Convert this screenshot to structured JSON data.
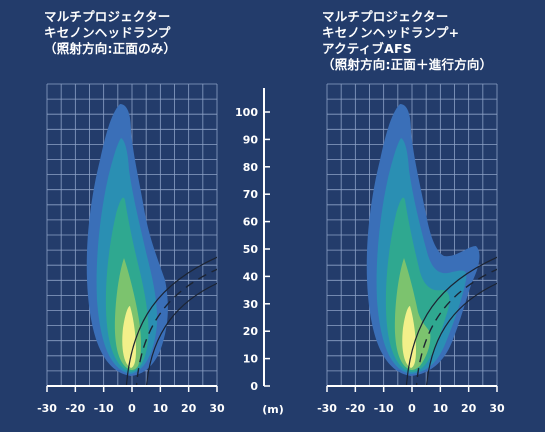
{
  "panel_left": {
    "title_lines": [
      "マルチプロジェクター",
      "キセノンヘッドランプ",
      "（照射方向:正面のみ）"
    ]
  },
  "panel_right": {
    "title_lines": [
      "マルチプロジェクター",
      "キセノンヘッドランプ+",
      "アクティブAFS",
      "（照射方向:正面＋進行方向）"
    ]
  },
  "x_axis": {
    "tick_labels": [
      "-30",
      "-20",
      "-10",
      "0",
      "10",
      "20",
      "30"
    ]
  },
  "distance_scale": {
    "tick_labels": [
      "0",
      "10",
      "20",
      "30",
      "40",
      "50",
      "60",
      "70",
      "80",
      "90",
      "100"
    ],
    "unit_label": "(m)"
  },
  "colors": {
    "background": "#233c6b",
    "grid": "#9fb3d6",
    "beam_outer": "#3a6fb8",
    "beam_mid": "#2a8fb3",
    "beam_teal": "#2fa890",
    "beam_green": "#7cc36e",
    "beam_core": "#f2f08a"
  }
}
